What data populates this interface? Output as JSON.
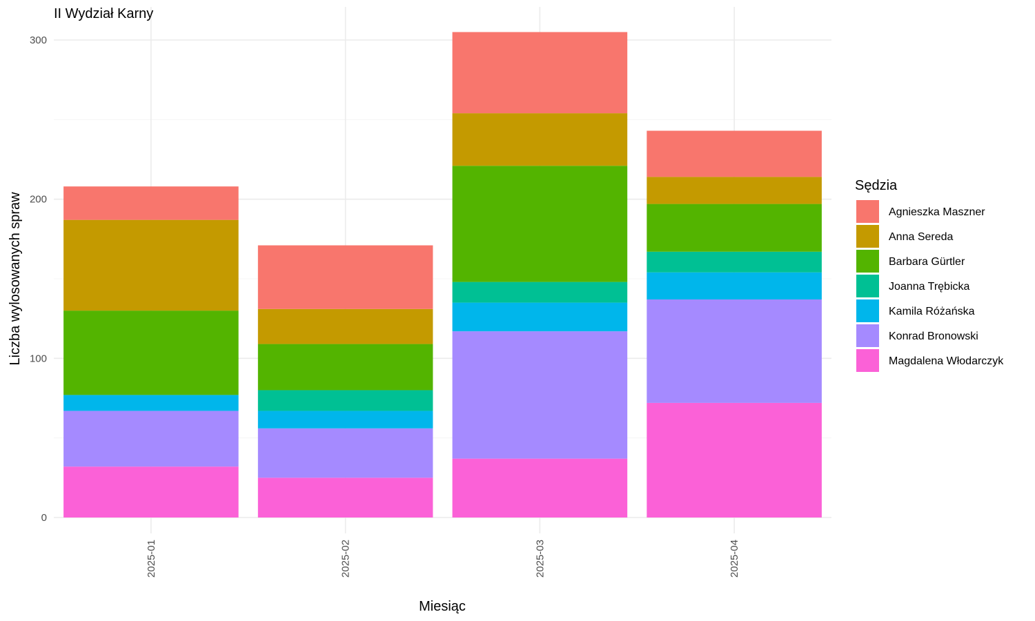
{
  "chart_data": {
    "type": "bar",
    "stacked": true,
    "title": "II Wydział Karny",
    "xlabel": "Miesiąc",
    "ylabel": "Liczba wylosowanych spraw",
    "ylim": [
      0,
      310
    ],
    "yticks": [
      0,
      100,
      200,
      300
    ],
    "grid": true,
    "legend": {
      "title": "Sędzia",
      "position": "right"
    },
    "categories": [
      "2025-01",
      "2025-02",
      "2025-03",
      "2025-04"
    ],
    "series": [
      {
        "name": "Magdalena Włodarczyk",
        "color": "#FB61D7",
        "values": [
          32,
          25,
          37,
          72
        ]
      },
      {
        "name": "Konrad Bronowski",
        "color": "#A58AFF",
        "values": [
          35,
          31,
          80,
          65
        ]
      },
      {
        "name": "Kamila Różańska",
        "color": "#00B6EB",
        "values": [
          10,
          11,
          18,
          17
        ]
      },
      {
        "name": "Joanna Trębicka",
        "color": "#00C094",
        "values": [
          0,
          13,
          13,
          13
        ]
      },
      {
        "name": "Barbara Gürtler",
        "color": "#53B400",
        "values": [
          53,
          29,
          73,
          30
        ]
      },
      {
        "name": "Anna Sereda",
        "color": "#C49A00",
        "values": [
          57,
          22,
          33,
          17
        ]
      },
      {
        "name": "Agnieszka Maszner",
        "color": "#F8766D",
        "values": [
          21,
          40,
          51,
          29
        ]
      }
    ],
    "legend_order": [
      "Agnieszka Maszner",
      "Anna Sereda",
      "Barbara Gürtler",
      "Joanna Trębicka",
      "Kamila Różańska",
      "Konrad Bronowski",
      "Magdalena Włodarczyk"
    ]
  }
}
